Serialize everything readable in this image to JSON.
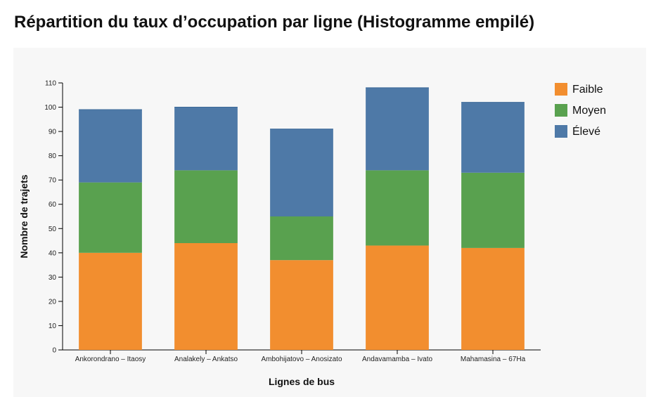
{
  "page": {
    "title": "Répartition du taux d’occupation par ligne (Histogramme empilé)"
  },
  "chart_data": {
    "type": "bar",
    "stacked": true,
    "title": "Répartition du taux d’occupation par ligne (Histogramme empilé)",
    "xlabel": "Lignes de bus",
    "ylabel": "Nombre de trajets",
    "categories": [
      "Ankorondrano – Itaosy",
      "Analakely – Ankatso",
      "Ambohijatovo – Anosizato",
      "Andavamamba – Ivato",
      "Mahamasina – 67Ha"
    ],
    "series": [
      {
        "name": "Faible",
        "color": "#f28e2f",
        "values": [
          40,
          44,
          37,
          43,
          42
        ]
      },
      {
        "name": "Moyen",
        "color": "#59a14f",
        "values": [
          29,
          30,
          18,
          31,
          31
        ]
      },
      {
        "name": "Élevé",
        "color": "#4e79a7",
        "values": [
          30,
          26,
          36,
          34,
          29
        ]
      }
    ],
    "ylim": [
      0,
      110
    ],
    "yticks": [
      0,
      10,
      20,
      30,
      40,
      50,
      60,
      70,
      80,
      90,
      100,
      110
    ],
    "grid": false,
    "legend_position": "right"
  }
}
